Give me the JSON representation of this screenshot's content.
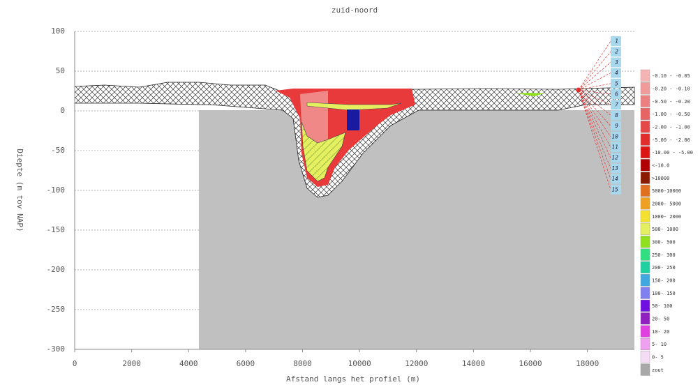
{
  "chart_data": {
    "type": "cross-section",
    "title": "zuid-noord",
    "xlabel": "Afstand langs het profiel (m)",
    "ylabel": "Diepte (m tov NAP)",
    "xlim": [
      0,
      19650
    ],
    "ylim": [
      -300,
      100
    ],
    "xticks": [
      0,
      2000,
      4000,
      6000,
      8000,
      10000,
      12000,
      14000,
      16000,
      18000
    ],
    "yticks": [
      100,
      50,
      0,
      -50,
      -100,
      -150,
      -200,
      -250,
      -300
    ],
    "grid": true,
    "well_labels": [
      "1",
      "2",
      "3",
      "4",
      "5",
      "6",
      "7",
      "8",
      "9",
      "10",
      "11",
      "12",
      "13",
      "14",
      "15"
    ],
    "legend": [
      {
        "label": "-0.10 - -0.05",
        "color": "#f4b4b4"
      },
      {
        "label": "-0.20 - -0.10",
        "color": "#f09a9a"
      },
      {
        "label": "-0.50 - -0.20",
        "color": "#ec7f7f"
      },
      {
        "label": "-1.00 - -0.50",
        "color": "#e86464"
      },
      {
        "label": "-2.00 - -1.00",
        "color": "#e54848"
      },
      {
        "label": "-5.00 - -2.00",
        "color": "#e22d2d"
      },
      {
        "label": "-10.00 - -5.00",
        "color": "#dc1414"
      },
      {
        "label": "<-10.0",
        "color": "#b00000"
      },
      {
        "label": ">10000",
        "color": "#8a1a00"
      },
      {
        "label": "5000-10000",
        "color": "#e07020"
      },
      {
        "label": "2000- 5000",
        "color": "#f0a020"
      },
      {
        "label": "1000- 2000",
        "color": "#f4e030"
      },
      {
        "label": "500- 1000",
        "color": "#e4f060"
      },
      {
        "label": "300- 500",
        "color": "#90e020"
      },
      {
        "label": "250- 300",
        "color": "#30e080"
      },
      {
        "label": "200- 250",
        "color": "#20d0a0"
      },
      {
        "label": "150- 200",
        "color": "#40a8e0"
      },
      {
        "label": "100- 150",
        "color": "#8080f0"
      },
      {
        "label": "50- 100",
        "color": "#7010e0"
      },
      {
        "label": "20- 50",
        "color": "#9020c0"
      },
      {
        "label": "10- 20",
        "color": "#e040e0"
      },
      {
        "label": "5- 10",
        "color": "#f0a0f0"
      },
      {
        "label": "0- 5",
        "color": "#f4dcf4"
      },
      {
        "label": "zout",
        "color": "#a8a8a8"
      }
    ]
  }
}
